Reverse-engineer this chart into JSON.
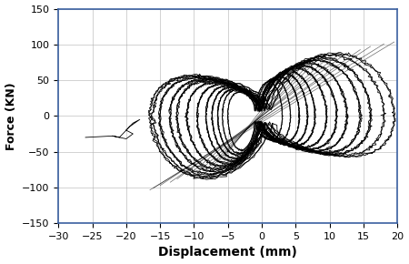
{
  "xlabel": "Displacement (mm)",
  "ylabel": "Force (KN)",
  "xlim": [
    -30,
    20
  ],
  "ylim": [
    -150,
    150
  ],
  "xticks": [
    -30,
    -25,
    -20,
    -15,
    -10,
    -5,
    0,
    5,
    10,
    15,
    20
  ],
  "yticks": [
    -150,
    -100,
    -50,
    0,
    50,
    100,
    150
  ],
  "line_color": "black",
  "line_width": 0.6,
  "background_color": "#ffffff",
  "grid_color": "#b0b0b0",
  "xlabel_fontsize": 10,
  "ylabel_fontsize": 9,
  "tick_fontsize": 8,
  "fig_width": 4.5,
  "fig_height": 2.9,
  "dpi": 100,
  "spine_color": "#3a5fa0"
}
